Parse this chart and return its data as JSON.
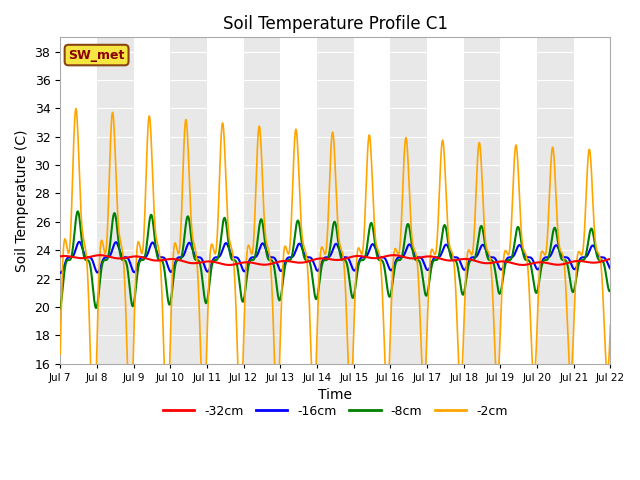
{
  "title": "Soil Temperature Profile C1",
  "xlabel": "Time",
  "ylabel": "Soil Temperature (C)",
  "ylim": [
    16,
    39
  ],
  "yticks": [
    16,
    18,
    20,
    22,
    24,
    26,
    28,
    30,
    32,
    34,
    36,
    38
  ],
  "plot_bg_color": "#e8e8e8",
  "grid_color": "white",
  "band_colors": [
    "white",
    "#e8e8e8"
  ],
  "annotation_text": "SW_met",
  "annotation_box_color": "#f5e642",
  "annotation_text_color": "#8b0000",
  "annotation_border_color": "#8b4513",
  "legend_labels": [
    "-32cm",
    "-16cm",
    "-8cm",
    "-2cm"
  ],
  "legend_colors": [
    "red",
    "blue",
    "green",
    "orange"
  ],
  "xtick_labels": [
    "Jul 7",
    "Jul 8",
    "Jul 9",
    "Jul 10",
    "Jul 11",
    "Jul 12",
    "Jul 13",
    "Jul 14",
    "Jul 15",
    "Jul 16",
    "Jul 17",
    "Jul 18",
    "Jul 19",
    "Jul 20",
    "Jul 21",
    "Jul 22"
  ],
  "n_points": 3000
}
